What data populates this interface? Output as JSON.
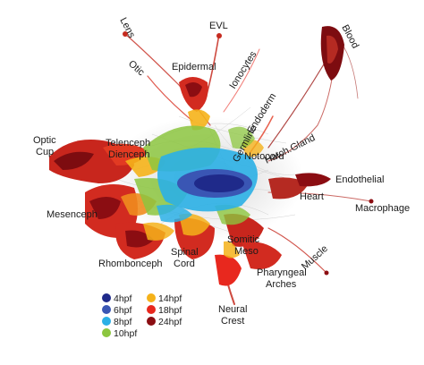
{
  "labels": {
    "lens": "Lens",
    "evl": "EVL",
    "blood": "Blood",
    "otic": "Otic",
    "epidermal": "Epidermal",
    "ionocytes": "Ionocytes",
    "endoderm": "Endoderm",
    "optic_cup": [
      "Optic",
      "Cup"
    ],
    "telenceph_dienceph": [
      "Telenceph",
      "Dienceph"
    ],
    "germline": "Germline",
    "notocord": "Notocord",
    "hatch_gland": "Hatch.Gland",
    "endothelial": "Endothelial",
    "heart": "Heart",
    "macrophage": "Macrophage",
    "mesenceph": "Mesenceph",
    "rhombonceph": "Rhombonceph",
    "spinal_cord": [
      "Spinal",
      "Cord"
    ],
    "somitic_meso": [
      "Somitic",
      "Meso"
    ],
    "muscle": "Muscle",
    "pharyngeal_arches": [
      "Pharyngeal",
      "Arches"
    ],
    "neural_crest": [
      "Neural",
      "Crest"
    ]
  },
  "legend": [
    {
      "label": "4hpf",
      "color": "#1f2a8a"
    },
    {
      "label": "6hpf",
      "color": "#3a56b4"
    },
    {
      "label": "8hpf",
      "color": "#2bb0e6"
    },
    {
      "label": "10hpf",
      "color": "#8cc63f"
    },
    {
      "label": "14hpf",
      "color": "#f5b21a"
    },
    {
      "label": "18hpf",
      "color": "#e8281e"
    },
    {
      "label": "24hpf",
      "color": "#8b0d12"
    }
  ]
}
